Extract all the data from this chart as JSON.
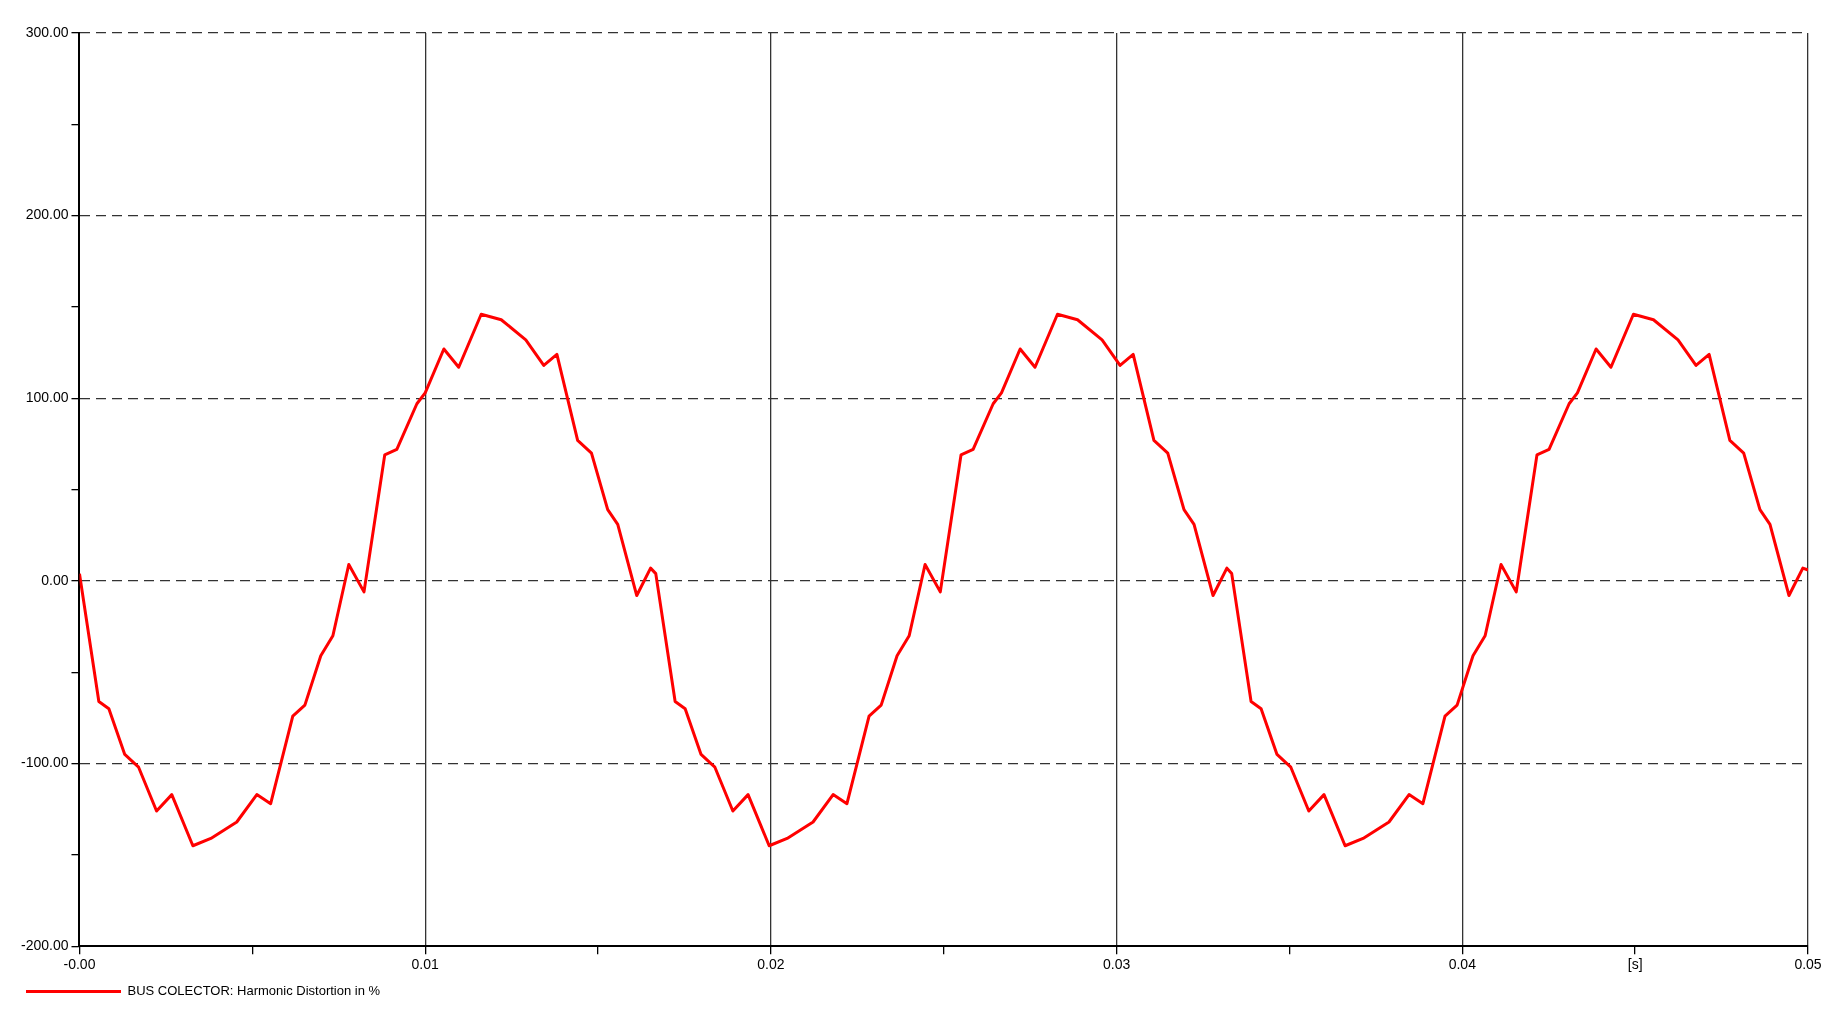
{
  "chart_data": {
    "type": "line",
    "xlabel": "[s]",
    "x": [
      0,
      0.00056,
      0.00085,
      0.00131,
      0.00171,
      0.00223,
      0.00267,
      0.00328,
      0.0038,
      0.00455,
      0.00513,
      0.00553,
      0.00617,
      0.00652,
      0.00698,
      0.00733,
      0.00779,
      0.00823,
      0.00883,
      0.00918,
      0.00976,
      0.01,
      0.01054,
      0.01097,
      0.01162,
      0.0122,
      0.01291,
      0.01343,
      0.01381,
      0.01441,
      0.01481,
      0.01528,
      0.01557,
      0.01612,
      0.01652,
      0.01667,
      0.01723,
      0.01752,
      0.01798,
      0.01838,
      0.0189,
      0.01934,
      0.01995,
      0.02047,
      0.02122,
      0.0218,
      0.0222,
      0.02284,
      0.02319,
      0.02365,
      0.024,
      0.02446,
      0.0249,
      0.0255,
      0.02585,
      0.02643,
      0.02667,
      0.02721,
      0.02764,
      0.02829,
      0.02887,
      0.02958,
      0.0301,
      0.03048,
      0.03108,
      0.03148,
      0.03195,
      0.03224,
      0.03279,
      0.03319,
      0.03333,
      0.03389,
      0.03418,
      0.03464,
      0.03504,
      0.03556,
      0.036,
      0.03661,
      0.03713,
      0.03788,
      0.03846,
      0.03886,
      0.0395,
      0.03985,
      0.04031,
      0.04066,
      0.04112,
      0.04156,
      0.04216,
      0.04251,
      0.04309,
      0.04333,
      0.04387,
      0.0443,
      0.04495,
      0.04553,
      0.04624,
      0.04676,
      0.04714,
      0.04774,
      0.04814,
      0.04861,
      0.0489,
      0.04945,
      0.04985,
      0.05
    ],
    "series": [
      {
        "name": "BUS COLECTOR: Harmonic Distortion in %",
        "color": "#ff0000",
        "values": [
          4,
          -66,
          -70,
          -95,
          -102,
          -126,
          -117,
          -145,
          -141,
          -132,
          -117,
          -122,
          -74,
          -68,
          -41,
          -30,
          9,
          -6,
          69,
          72,
          97,
          103,
          127,
          117,
          146,
          143,
          132,
          118,
          124,
          77,
          70,
          39,
          31,
          -8,
          7,
          4,
          -66,
          -70,
          -95,
          -102,
          -126,
          -117,
          -145,
          -141,
          -132,
          -117,
          -122,
          -74,
          -68,
          -41,
          -30,
          9,
          -6,
          69,
          72,
          97,
          103,
          127,
          117,
          146,
          143,
          132,
          118,
          124,
          77,
          70,
          39,
          31,
          -8,
          7,
          4,
          -66,
          -70,
          -95,
          -102,
          -126,
          -117,
          -145,
          -141,
          -132,
          -117,
          -122,
          -74,
          -68,
          -41,
          -30,
          9,
          -6,
          69,
          72,
          97,
          103,
          127,
          117,
          146,
          143,
          132,
          118,
          124,
          77,
          70,
          39,
          31,
          -8,
          7,
          6
        ]
      }
    ],
    "xlim": [
      0,
      0.05
    ],
    "xticks": [
      {
        "value": 0,
        "label": "-0.00"
      },
      {
        "value": 0.005,
        "label": null
      },
      {
        "value": 0.01,
        "label": "0.01"
      },
      {
        "value": 0.015,
        "label": null
      },
      {
        "value": 0.02,
        "label": "0.02"
      },
      {
        "value": 0.025,
        "label": null
      },
      {
        "value": 0.03,
        "label": "0.03"
      },
      {
        "value": 0.035,
        "label": null
      },
      {
        "value": 0.04,
        "label": "0.04"
      },
      {
        "value": 0.045,
        "label": null
      },
      {
        "value": 0.05,
        "label": "0.05"
      }
    ],
    "ylim": [
      -200,
      300
    ],
    "yticks": [
      {
        "value": -200,
        "label": "-200.00"
      },
      {
        "value": -150,
        "label": null
      },
      {
        "value": -100,
        "label": "-100.00"
      },
      {
        "value": -50,
        "label": null
      },
      {
        "value": 0,
        "label": "0.00"
      },
      {
        "value": 50,
        "label": null
      },
      {
        "value": 100,
        "label": "100.00"
      },
      {
        "value": 150,
        "label": null
      },
      {
        "value": 200,
        "label": "200.00"
      },
      {
        "value": 250,
        "label": null
      },
      {
        "value": 300,
        "label": "300.00"
      }
    ],
    "grid": true,
    "legend": "bottom left",
    "marker": "none",
    "line_style": "solid"
  }
}
